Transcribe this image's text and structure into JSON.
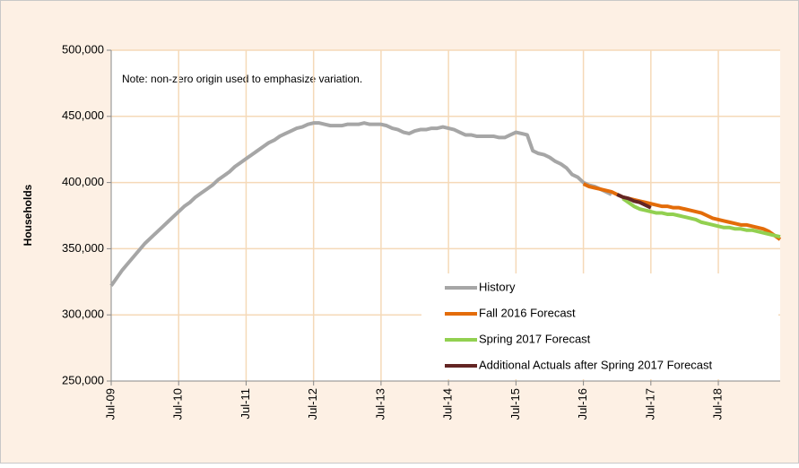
{
  "chart_data": {
    "type": "line",
    "y_label": "Households",
    "annotation": "Note: non-zero origin used to emphasize variation.",
    "categories": [
      "Jul-09",
      null,
      null,
      null,
      null,
      null,
      null,
      null,
      null,
      null,
      null,
      null,
      "Jul-10",
      null,
      null,
      null,
      null,
      null,
      null,
      null,
      null,
      null,
      null,
      null,
      "Jul-11",
      null,
      null,
      null,
      null,
      null,
      null,
      null,
      null,
      null,
      null,
      null,
      "Jul-12",
      null,
      null,
      null,
      null,
      null,
      null,
      null,
      null,
      null,
      null,
      null,
      "Jul-13",
      null,
      null,
      null,
      null,
      null,
      null,
      null,
      null,
      null,
      null,
      null,
      "Jul-14",
      null,
      null,
      null,
      null,
      null,
      null,
      null,
      null,
      null,
      null,
      null,
      "Jul-15",
      null,
      null,
      null,
      null,
      null,
      null,
      null,
      null,
      null,
      null,
      null,
      "Jul-16",
      null,
      null,
      null,
      null,
      null,
      null,
      null,
      null,
      null,
      null,
      null,
      "Jul-17",
      null,
      null,
      null,
      null,
      null,
      null,
      null,
      null,
      null,
      null,
      null,
      "Jul-18",
      null,
      null,
      null,
      null,
      null,
      null,
      null,
      null,
      null,
      null,
      null
    ],
    "series": [
      {
        "name": "History",
        "color": "#a6a6a6",
        "values": [
          322000,
          328000,
          334000,
          339000,
          344000,
          349000,
          354000,
          358000,
          362000,
          366000,
          370000,
          374000,
          378000,
          382000,
          385000,
          389000,
          392000,
          395000,
          398000,
          402000,
          405000,
          408000,
          412000,
          415000,
          418000,
          421000,
          424000,
          427000,
          430000,
          432000,
          435000,
          437000,
          439000,
          441000,
          442000,
          444000,
          445000,
          445000,
          444000,
          443000,
          443000,
          443000,
          444000,
          444000,
          444000,
          445000,
          444000,
          444000,
          444000,
          443000,
          441000,
          440000,
          438000,
          437000,
          439000,
          440000,
          440000,
          441000,
          441000,
          442000,
          441000,
          440000,
          438000,
          436000,
          436000,
          435000,
          435000,
          435000,
          435000,
          434000,
          434000,
          436000,
          438000,
          437000,
          436000,
          424000,
          422000,
          421000,
          419000,
          416000,
          414000,
          411000,
          406000,
          404000,
          400000,
          398000,
          397000,
          395000,
          393000,
          391000,
          null,
          null,
          null,
          null,
          null,
          null,
          null,
          null,
          null,
          null,
          null,
          null,
          null,
          null,
          null,
          null,
          null,
          null,
          null,
          null,
          null,
          null,
          null,
          null,
          null,
          null,
          null,
          null,
          null,
          null
        ]
      },
      {
        "name": "Fall 2016 Forecast",
        "color": "#e36c09",
        "values": [
          null,
          null,
          null,
          null,
          null,
          null,
          null,
          null,
          null,
          null,
          null,
          null,
          null,
          null,
          null,
          null,
          null,
          null,
          null,
          null,
          null,
          null,
          null,
          null,
          null,
          null,
          null,
          null,
          null,
          null,
          null,
          null,
          null,
          null,
          null,
          null,
          null,
          null,
          null,
          null,
          null,
          null,
          null,
          null,
          null,
          null,
          null,
          null,
          null,
          null,
          null,
          null,
          null,
          null,
          null,
          null,
          null,
          null,
          null,
          null,
          null,
          null,
          null,
          null,
          null,
          null,
          null,
          null,
          null,
          null,
          null,
          null,
          null,
          null,
          null,
          null,
          null,
          null,
          null,
          null,
          null,
          null,
          null,
          null,
          399000,
          397000,
          396000,
          395000,
          394000,
          393000,
          391000,
          389000,
          388000,
          387000,
          386000,
          385000,
          384000,
          383000,
          382000,
          382000,
          381000,
          381000,
          380000,
          379000,
          378000,
          377000,
          375000,
          373000,
          372000,
          371000,
          370000,
          369000,
          368000,
          368000,
          367000,
          366000,
          365000,
          363000,
          360000,
          357000
        ]
      },
      {
        "name": "Spring 2017 Forecast",
        "color": "#92d050",
        "values": [
          null,
          null,
          null,
          null,
          null,
          null,
          null,
          null,
          null,
          null,
          null,
          null,
          null,
          null,
          null,
          null,
          null,
          null,
          null,
          null,
          null,
          null,
          null,
          null,
          null,
          null,
          null,
          null,
          null,
          null,
          null,
          null,
          null,
          null,
          null,
          null,
          null,
          null,
          null,
          null,
          null,
          null,
          null,
          null,
          null,
          null,
          null,
          null,
          null,
          null,
          null,
          null,
          null,
          null,
          null,
          null,
          null,
          null,
          null,
          null,
          null,
          null,
          null,
          null,
          null,
          null,
          null,
          null,
          null,
          null,
          null,
          null,
          null,
          null,
          null,
          null,
          null,
          null,
          null,
          null,
          null,
          null,
          null,
          null,
          null,
          null,
          null,
          null,
          null,
          null,
          null,
          388000,
          385000,
          382000,
          380000,
          379000,
          378000,
          377000,
          377000,
          376000,
          376000,
          375000,
          374000,
          373000,
          372000,
          370000,
          369000,
          368000,
          367000,
          366000,
          366000,
          365000,
          365000,
          364000,
          364000,
          363000,
          362000,
          361000,
          360000,
          359000
        ]
      },
      {
        "name": "Additional Actuals after Spring 2017 Forecast",
        "color": "#632523",
        "values": [
          null,
          null,
          null,
          null,
          null,
          null,
          null,
          null,
          null,
          null,
          null,
          null,
          null,
          null,
          null,
          null,
          null,
          null,
          null,
          null,
          null,
          null,
          null,
          null,
          null,
          null,
          null,
          null,
          null,
          null,
          null,
          null,
          null,
          null,
          null,
          null,
          null,
          null,
          null,
          null,
          null,
          null,
          null,
          null,
          null,
          null,
          null,
          null,
          null,
          null,
          null,
          null,
          null,
          null,
          null,
          null,
          null,
          null,
          null,
          null,
          null,
          null,
          null,
          null,
          null,
          null,
          null,
          null,
          null,
          null,
          null,
          null,
          null,
          null,
          null,
          null,
          null,
          null,
          null,
          null,
          null,
          null,
          null,
          null,
          null,
          null,
          null,
          null,
          null,
          null,
          391000,
          389000,
          388000,
          386000,
          385000,
          383000,
          381000,
          null,
          null,
          null,
          null,
          null,
          null,
          null,
          null,
          null,
          null,
          null,
          null,
          null,
          null,
          null,
          null,
          null,
          null,
          null,
          null,
          null,
          null,
          null
        ]
      }
    ],
    "ylim": [
      250000,
      500000
    ],
    "yticks": [
      {
        "value": 250000,
        "label": "250,000"
      },
      {
        "value": 300000,
        "label": "300,000"
      },
      {
        "value": 350000,
        "label": "350,000"
      },
      {
        "value": 400000,
        "label": "400,000"
      },
      {
        "value": 450000,
        "label": "450,000"
      },
      {
        "value": 500000,
        "label": "500,000"
      }
    ],
    "grid": true
  }
}
